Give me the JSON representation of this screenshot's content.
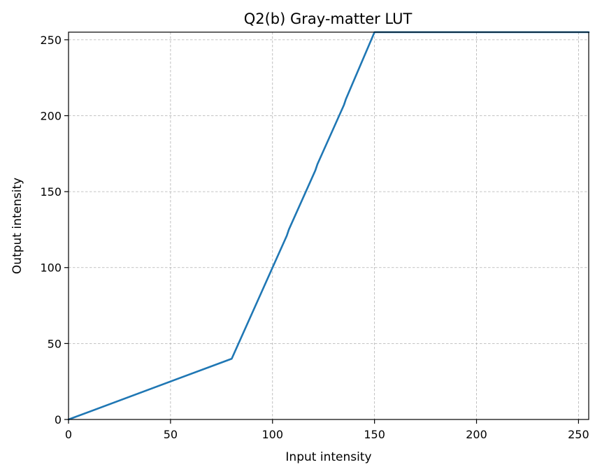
{
  "chart_data": {
    "type": "line",
    "title": "Q2(b) Gray-matter LUT",
    "xlabel": "Input intensity",
    "ylabel": "Output intensity",
    "xlim": [
      0,
      255
    ],
    "ylim": [
      0,
      255
    ],
    "xticks": [
      "0",
      "50",
      "100",
      "150",
      "200",
      "250"
    ],
    "yticks": [
      "0",
      "50",
      "100",
      "150",
      "200",
      "250"
    ],
    "grid": true,
    "series": [
      {
        "color": "#1f77b4",
        "x": [
          0,
          80,
          93,
          94,
          107,
          108,
          121,
          122,
          135,
          136,
          150,
          255
        ],
        "y": [
          0,
          40,
          79,
          82,
          121,
          125,
          164,
          168,
          207,
          211,
          255,
          255
        ]
      }
    ]
  }
}
